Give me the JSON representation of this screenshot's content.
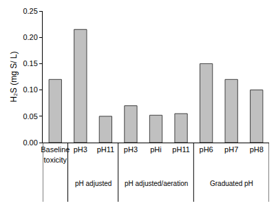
{
  "chart_data": {
    "type": "bar",
    "y_label": "H₂S (mg S/ L)",
    "categories": [
      "Baseline toxicity",
      "pH3",
      "pH11",
      "pH3",
      "pHi",
      "pH11",
      "pH6",
      "pH7",
      "pH8"
    ],
    "groups": [
      null,
      "pH adjusted",
      "pH adjusted",
      "pH adjusted/aeration",
      "pH adjusted/aeration",
      "pH adjusted/aeration",
      "Graduated pH",
      "Graduated pH",
      "Graduated pH"
    ],
    "values": [
      0.12,
      0.215,
      0.05,
      0.07,
      0.052,
      0.055,
      0.15,
      0.12,
      0.1
    ],
    "color": "#c0c0c0",
    "ylim": [
      0,
      0.25
    ],
    "yticks": [
      {
        "value": 0,
        "label": "0.00"
      },
      {
        "value": 0.05,
        "label": "0.05"
      },
      {
        "value": 0.1,
        "label": "0.10"
      },
      {
        "value": 0.15,
        "label": "0.15"
      },
      {
        "value": 0.2,
        "label": "0.20"
      },
      {
        "value": 0.25,
        "label": "0.25"
      }
    ],
    "grid": false
  }
}
